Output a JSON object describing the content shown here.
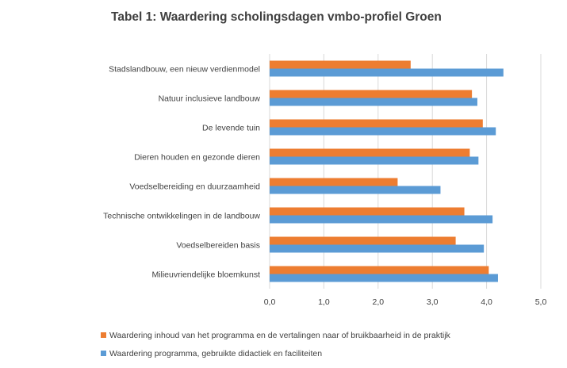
{
  "chart_data": {
    "type": "bar",
    "orientation": "horizontal",
    "title": "Tabel 1: Waardering scholingsdagen vmbo-profiel Groen",
    "categories": [
      "Stadslandbouw, een nieuw verdienmodel",
      "Natuur inclusieve landbouw",
      "De levende tuin",
      "Dieren houden en gezonde dieren",
      "Voedselbereiding en duurzaamheid",
      "Technische ontwikkelingen in de landbouw",
      "Voedselbereiden basis",
      "Milieuvriendelijke bloemkunst"
    ],
    "series": [
      {
        "name": "Waardering inhoud van het programma en de vertalingen naar of bruikbaarheid in de praktijk",
        "color": "#ed7d31",
        "values": [
          2.6,
          3.73,
          3.93,
          3.69,
          2.36,
          3.59,
          3.43,
          4.04
        ]
      },
      {
        "name": "Waardering programma, gebruikte didactiek en faciliteiten",
        "color": "#5b9bd5",
        "values": [
          4.31,
          3.83,
          4.17,
          3.85,
          3.15,
          4.11,
          3.95,
          4.21
        ]
      }
    ],
    "xlim": [
      0,
      5
    ],
    "xticks": [
      0,
      1,
      2,
      3,
      4,
      5
    ],
    "xtick_labels": [
      "0,0",
      "1,0",
      "2,0",
      "3,0",
      "4,0",
      "5,0"
    ],
    "grid": true,
    "legend_position": "bottom-left"
  }
}
